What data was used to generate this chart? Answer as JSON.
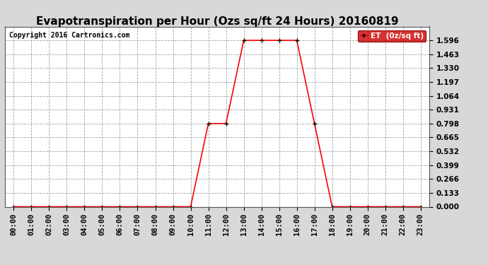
{
  "title": "Evapotranspiration per Hour (Ozs sq/ft 24 Hours) 20160819",
  "copyright": "Copyright 2016 Cartronics.com",
  "legend_label": "ET  (0z/sq ft)",
  "line_color": "#ff0000",
  "background_color": "#d8d8d8",
  "plot_bg_color": "#ffffff",
  "grid_color": "#999999",
  "hours": [
    0,
    1,
    2,
    3,
    4,
    5,
    6,
    7,
    8,
    9,
    10,
    11,
    12,
    13,
    14,
    15,
    16,
    17,
    18,
    19,
    20,
    21,
    22,
    23
  ],
  "values": [
    0.0,
    0.0,
    0.0,
    0.0,
    0.0,
    0.0,
    0.0,
    0.0,
    0.0,
    0.0,
    0.0,
    0.798,
    0.798,
    1.596,
    1.596,
    1.596,
    1.596,
    0.798,
    0.0,
    0.0,
    0.0,
    0.0,
    0.0,
    0.0
  ],
  "ylim": [
    0.0,
    1.729
  ],
  "yticks": [
    0.0,
    0.133,
    0.266,
    0.399,
    0.532,
    0.665,
    0.798,
    0.931,
    1.064,
    1.197,
    1.33,
    1.463,
    1.596
  ],
  "title_fontsize": 11,
  "tick_fontsize": 7.5,
  "copyright_fontsize": 7,
  "legend_bg": "#cc0000",
  "legend_text_color": "#ffffff"
}
